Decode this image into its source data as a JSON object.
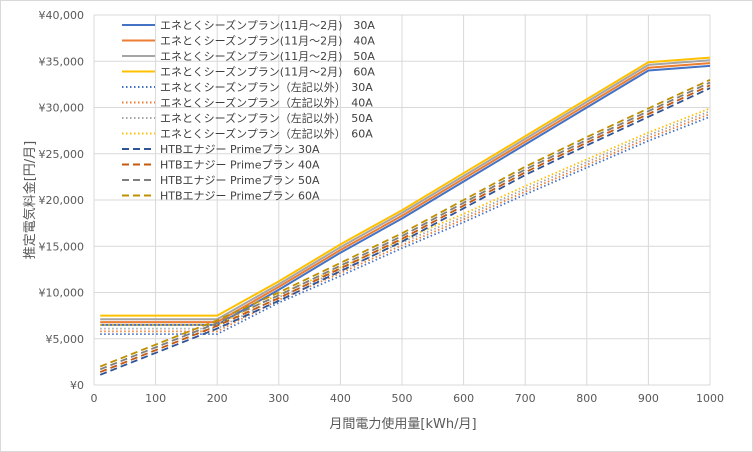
{
  "chart_data": {
    "type": "line",
    "xlabel": "月間電力使用量[kWh/月]",
    "ylabel": "推定電気料金[円/月]",
    "x": [
      10,
      200,
      300,
      400,
      500,
      600,
      700,
      800,
      900,
      1000
    ],
    "xlim": [
      0,
      1000
    ],
    "ylim": [
      0,
      40000
    ],
    "xticks": [
      "0",
      "100",
      "200",
      "300",
      "400",
      "500",
      "600",
      "700",
      "800",
      "900",
      "1000"
    ],
    "yticks": [
      "¥0",
      "¥5,000",
      "¥10,000",
      "¥15,000",
      "¥20,000",
      "¥25,000",
      "¥30,000",
      "¥35,000",
      "¥40,000"
    ],
    "grid": true,
    "legend_position": "top-left",
    "series": [
      {
        "name": "エネとくシーズンプラン(11月～2月)　30A",
        "color": "#4472C4",
        "style": "solid",
        "values": [
          6500,
          6500,
          10300,
          14300,
          18000,
          22000,
          26000,
          30000,
          34000,
          34500
        ]
      },
      {
        "name": "エネとくシーズンプラン(11月～2月)　40A",
        "color": "#ED7D31",
        "style": "solid",
        "values": [
          6800,
          6800,
          10600,
          14600,
          18300,
          22300,
          26300,
          30300,
          34300,
          34800
        ]
      },
      {
        "name": "エネとくシーズンプラン(11月～2月)　50A",
        "color": "#A5A5A5",
        "style": "solid",
        "values": [
          7100,
          7100,
          10900,
          14900,
          18600,
          22600,
          26600,
          30600,
          34600,
          35100
        ]
      },
      {
        "name": "エネとくシーズンプラン(11月～2月)　60A",
        "color": "#FFC000",
        "style": "solid",
        "values": [
          7500,
          7500,
          11200,
          15200,
          18900,
          22900,
          26900,
          30900,
          34900,
          35400
        ]
      },
      {
        "name": "エネとくシーズンプラン（左記以外）　30A",
        "color": "#4472C4",
        "style": "dotted",
        "values": [
          5500,
          5500,
          8900,
          11800,
          14800,
          17600,
          20600,
          23500,
          26400,
          29000
        ]
      },
      {
        "name": "エネとくシーズンプラン（左記以外）　40A",
        "color": "#ED7D31",
        "style": "dotted",
        "values": [
          5800,
          5800,
          9200,
          12100,
          15100,
          17900,
          20900,
          23800,
          26700,
          29300
        ]
      },
      {
        "name": "エネとくシーズンプラン（左記以外）　50A",
        "color": "#A5A5A5",
        "style": "dotted",
        "values": [
          6100,
          6100,
          9500,
          12400,
          15400,
          18200,
          21200,
          24100,
          27000,
          29600
        ]
      },
      {
        "name": "エネとくシーズンプラン（左記以外）　60A",
        "color": "#FFC000",
        "style": "dotted",
        "values": [
          6500,
          6500,
          9800,
          12700,
          15700,
          18500,
          21500,
          24400,
          27300,
          29900
        ]
      },
      {
        "name": "HTBエナジー Primeプラン 30A",
        "color": "#2F5597",
        "style": "dashed",
        "values": [
          1100,
          6100,
          9100,
          12300,
          15500,
          19100,
          22700,
          25900,
          29000,
          32100
        ]
      },
      {
        "name": "HTBエナジー Primeプラン 40A",
        "color": "#C55A11",
        "style": "dashed",
        "values": [
          1400,
          6400,
          9400,
          12600,
          15800,
          19400,
          23000,
          26200,
          29300,
          32400
        ]
      },
      {
        "name": "HTBエナジー Primeプラン 50A",
        "color": "#7F7F7F",
        "style": "dashed",
        "values": [
          1700,
          6700,
          9700,
          12900,
          16100,
          19700,
          23300,
          26500,
          29600,
          32700
        ]
      },
      {
        "name": "HTBエナジー Primeプラン 60A",
        "color": "#BF9000",
        "style": "dashed",
        "values": [
          2000,
          7000,
          10000,
          13200,
          16400,
          20000,
          23600,
          26800,
          29900,
          33000
        ]
      }
    ]
  }
}
